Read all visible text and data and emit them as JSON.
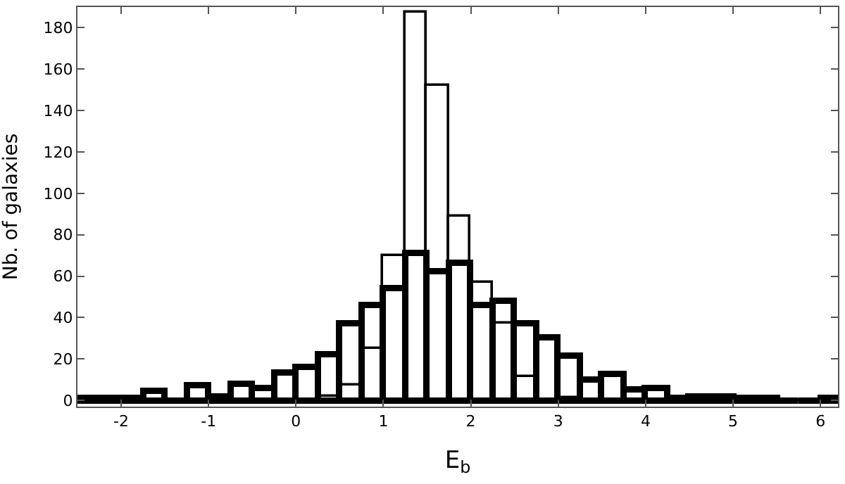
{
  "chart_data": {
    "type": "histogram",
    "xlabel": "E$_{b}$",
    "ylabel": "Nb. of galaxies",
    "bins": [
      -2.5,
      -2.25,
      -2,
      -1.75,
      -1.5,
      -1.25,
      -1,
      -0.75,
      -0.5,
      -0.25,
      0,
      0.25,
      0.5,
      0.75,
      1,
      1.25,
      1.5,
      1.75,
      2,
      2.25,
      2.5,
      2.75,
      3,
      3.25,
      3.5,
      3.75,
      4,
      4.25,
      4.5,
      4.75,
      5,
      5.25,
      5.5,
      5.75,
      6,
      6.25
    ],
    "series": [
      {
        "color": "#000000",
        "values": [
          1,
          1,
          1,
          4.5,
          0,
          7,
          2,
          8,
          5.5,
          13.5,
          16,
          22,
          37,
          46,
          54,
          71,
          62,
          66,
          46,
          48,
          37,
          30.5,
          21.5,
          10,
          12.5,
          5,
          5.5,
          1,
          2,
          2,
          1,
          1,
          0,
          0,
          1
        ]
      },
      {
        "color": "#000000",
        "values": [
          0,
          0,
          0,
          0,
          0,
          0,
          0,
          0,
          0,
          0,
          0,
          1.5,
          7.5,
          25,
          69.5,
          187,
          152,
          89,
          57,
          37,
          11,
          0,
          1,
          0,
          0,
          0,
          0,
          0,
          0,
          0,
          0,
          0,
          0,
          0,
          0
        ]
      }
    ],
    "xlim": [
      -2.5,
      6.2
    ],
    "ylim": [
      -3,
      190
    ],
    "xticks": [
      -2,
      -1,
      0,
      1,
      2,
      3,
      4,
      5,
      6
    ],
    "yticks": [
      0,
      20,
      40,
      60,
      80,
      100,
      120,
      140,
      160,
      180
    ]
  }
}
